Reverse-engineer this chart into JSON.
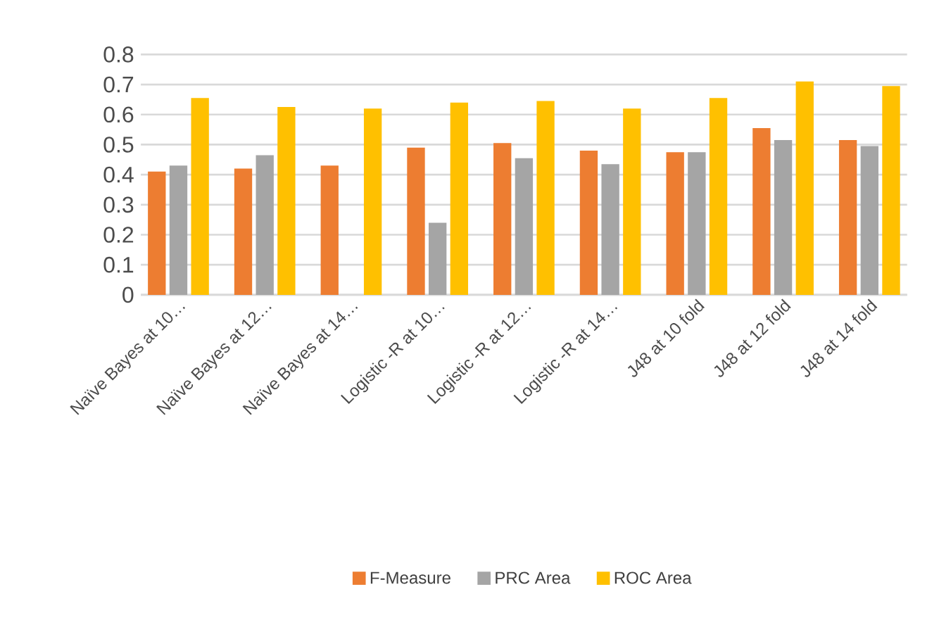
{
  "chart_data": {
    "type": "bar",
    "categories": [
      "Naïve Bayes at 10…",
      "Naïve Bayes at 12…",
      "Naïve Bayes at 14…",
      "Logistic -R  at 10…",
      "Logistic -R at 12…",
      "Logistic -R at 14…",
      "J48  at 10 fold",
      "J48 at 12 fold",
      "J48 at 14 fold"
    ],
    "series": [
      {
        "name": "F-Measure",
        "color": "#ed7d31",
        "values": [
          0.41,
          0.42,
          0.43,
          0.49,
          0.505,
          0.48,
          0.475,
          0.555,
          0.515
        ]
      },
      {
        "name": "PRC Area",
        "color": "#a5a5a5",
        "values": [
          0.43,
          0.465,
          null,
          0.24,
          0.455,
          0.435,
          0.475,
          0.515,
          0.495
        ]
      },
      {
        "name": "ROC Area",
        "color": "#ffc000",
        "values": [
          0.655,
          0.625,
          0.62,
          0.64,
          0.645,
          0.62,
          0.655,
          0.71,
          0.695
        ]
      }
    ],
    "ylim": [
      0,
      0.8
    ],
    "yticks": [
      0,
      0.1,
      0.2,
      0.3,
      0.4,
      0.5,
      0.6,
      0.7,
      0.8
    ],
    "grid": "y",
    "legend": "bottom"
  }
}
